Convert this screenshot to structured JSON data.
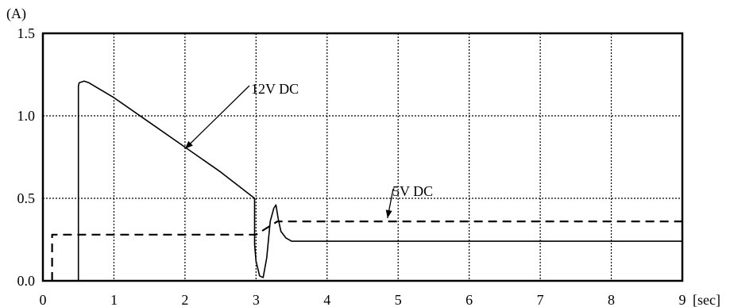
{
  "chart_data": {
    "type": "line",
    "title": "",
    "xlabel": "[sec]",
    "ylabel": "(A)",
    "xlim": [
      0,
      9
    ],
    "ylim": [
      0,
      1.5
    ],
    "x_ticks": [
      0,
      1,
      2,
      3,
      4,
      5,
      6,
      7,
      8,
      9
    ],
    "x_tick_labels": [
      "0",
      "1",
      "2",
      "3",
      "4",
      "5",
      "6",
      "7",
      "8",
      "9"
    ],
    "y_ticks": [
      0,
      0.5,
      1.0,
      1.5
    ],
    "y_tick_labels": [
      "0.0",
      "0.5",
      "1.0",
      "1.5"
    ],
    "grid": true,
    "series": [
      {
        "name": "12V DC",
        "style": "solid",
        "x": [
          0.5,
          0.5,
          0.51,
          0.58,
          0.65,
          1.0,
          1.5,
          2.0,
          2.5,
          2.98,
          2.98,
          3.0,
          3.05,
          3.1,
          3.15,
          3.2,
          3.25,
          3.28,
          3.31,
          3.35,
          3.42,
          3.5,
          4.0,
          6.0,
          8.0,
          9.0
        ],
        "y": [
          0.0,
          1.18,
          1.2,
          1.21,
          1.2,
          1.11,
          0.96,
          0.81,
          0.66,
          0.5,
          0.22,
          0.12,
          0.03,
          0.02,
          0.14,
          0.36,
          0.44,
          0.46,
          0.38,
          0.3,
          0.26,
          0.24,
          0.24,
          0.24,
          0.24,
          0.24
        ]
      },
      {
        "name": "5V DC",
        "style": "dashed",
        "x": [
          0.13,
          0.13,
          3.0,
          3.0,
          3.3,
          9.0
        ],
        "y": [
          0.0,
          0.28,
          0.28,
          0.28,
          0.36,
          0.36
        ]
      }
    ],
    "annotations": [
      {
        "text": "12V DC",
        "points_to": [
          2.0,
          0.8
        ]
      },
      {
        "text": "5V DC",
        "points_to": [
          4.85,
          0.38
        ]
      }
    ]
  }
}
